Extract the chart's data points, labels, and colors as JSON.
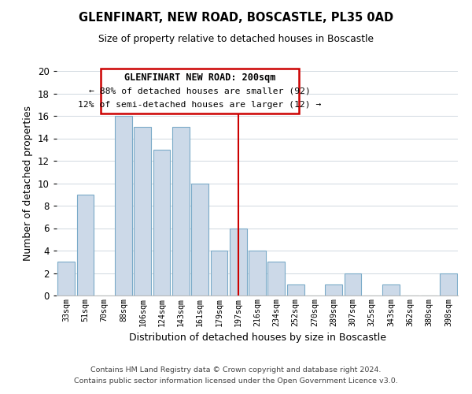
{
  "title": "GLENFINART, NEW ROAD, BOSCASTLE, PL35 0AD",
  "subtitle": "Size of property relative to detached houses in Boscastle",
  "xlabel": "Distribution of detached houses by size in Boscastle",
  "ylabel": "Number of detached properties",
  "bar_labels": [
    "33sqm",
    "51sqm",
    "70sqm",
    "88sqm",
    "106sqm",
    "124sqm",
    "143sqm",
    "161sqm",
    "179sqm",
    "197sqm",
    "216sqm",
    "234sqm",
    "252sqm",
    "270sqm",
    "289sqm",
    "307sqm",
    "325sqm",
    "343sqm",
    "362sqm",
    "380sqm",
    "398sqm"
  ],
  "bar_values": [
    3,
    9,
    0,
    16,
    15,
    13,
    15,
    10,
    4,
    6,
    4,
    3,
    1,
    0,
    1,
    2,
    0,
    1,
    0,
    0,
    2
  ],
  "bar_color": "#ccd9e8",
  "bar_edge_color": "#7aaac8",
  "highlight_x_label": "197sqm",
  "highlight_line_color": "#cc0000",
  "ylim": [
    0,
    20
  ],
  "yticks": [
    0,
    2,
    4,
    6,
    8,
    10,
    12,
    14,
    16,
    18,
    20
  ],
  "annotation_title": "GLENFINART NEW ROAD: 200sqm",
  "annotation_line1": "← 88% of detached houses are smaller (92)",
  "annotation_line2": "12% of semi-detached houses are larger (12) →",
  "annotation_box_edge": "#cc0000",
  "footer_line1": "Contains HM Land Registry data © Crown copyright and database right 2024.",
  "footer_line2": "Contains public sector information licensed under the Open Government Licence v3.0.",
  "background_color": "#ffffff",
  "grid_color": "#d0d8e0"
}
